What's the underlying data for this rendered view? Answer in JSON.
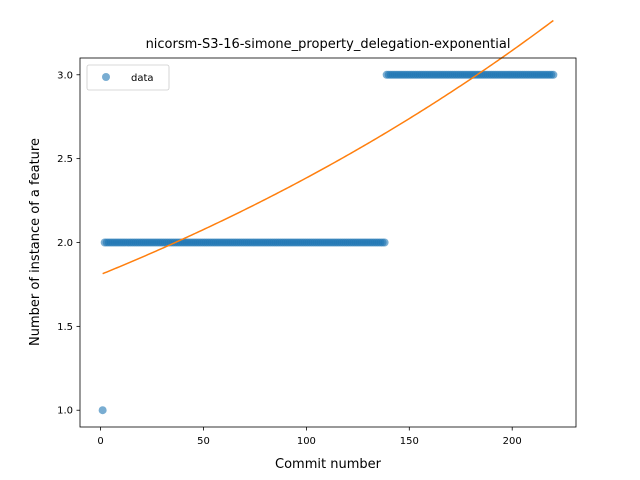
{
  "chart_data": {
    "type": "scatter",
    "title": "nicorsm-S3-16-simone_property_delegation-exponential",
    "xlabel": "Commit number",
    "ylabel": "Number of instance of a feature",
    "xlim": [
      -10,
      231
    ],
    "ylim": [
      0.9,
      3.1
    ],
    "xticks": [
      0,
      50,
      100,
      150,
      200
    ],
    "yticks": [
      1.0,
      1.5,
      2.0,
      2.5,
      3.0
    ],
    "grid": false,
    "legend_position": "top-left",
    "series": [
      {
        "name": "data",
        "kind": "points",
        "color": "#1f77b4",
        "segments": [
          {
            "x_start": 1,
            "x_end": 1,
            "y": 1.0
          },
          {
            "x_start": 2,
            "x_end": 138,
            "y": 2.0
          },
          {
            "x_start": 139,
            "x_end": 220,
            "y": 3.0
          }
        ]
      },
      {
        "kind": "line",
        "color": "#ff7f0e",
        "model": "exponential",
        "a": 1.809,
        "b": 0.002765,
        "x_range": [
          1,
          220
        ]
      }
    ]
  }
}
